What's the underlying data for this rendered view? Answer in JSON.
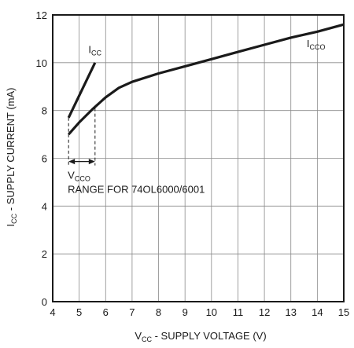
{
  "chart_data": {
    "type": "line",
    "xlabel": {
      "main": "V",
      "sub": "CC",
      "rest": " - SUPPLY VOLTAGE (V)"
    },
    "ylabel": {
      "main": "I",
      "sub": "CC",
      "rest": " - SUPPLY CURRENT (mA)"
    },
    "xlim": [
      4,
      15
    ],
    "ylim": [
      0,
      12
    ],
    "x_ticks": [
      4,
      5,
      6,
      7,
      8,
      9,
      10,
      11,
      12,
      13,
      14,
      15
    ],
    "y_ticks": [
      0,
      2,
      4,
      6,
      8,
      10,
      12
    ],
    "grid": true,
    "series": [
      {
        "name": "I_CC",
        "label": {
          "main": "I",
          "sub": "CC"
        },
        "x": [
          4.6,
          5.6
        ],
        "y": [
          7.7,
          10.0
        ]
      },
      {
        "name": "I_CCO",
        "label": {
          "main": "I",
          "sub": "CCO"
        },
        "x": [
          4.6,
          5.0,
          5.5,
          6.0,
          6.5,
          7.0,
          8.0,
          9.0,
          10.0,
          11.0,
          12.0,
          13.0,
          14.0,
          15.0
        ],
        "y": [
          7.0,
          7.5,
          8.05,
          8.55,
          8.95,
          9.2,
          9.55,
          9.85,
          10.15,
          10.45,
          10.75,
          11.05,
          11.3,
          11.6
        ]
      }
    ],
    "annotations": {
      "range_symbol": {
        "main": "V",
        "sub": "CCO"
      },
      "range_text": "RANGE FOR 74OL6000/6001",
      "range_x": [
        4.6,
        5.6
      ]
    }
  }
}
